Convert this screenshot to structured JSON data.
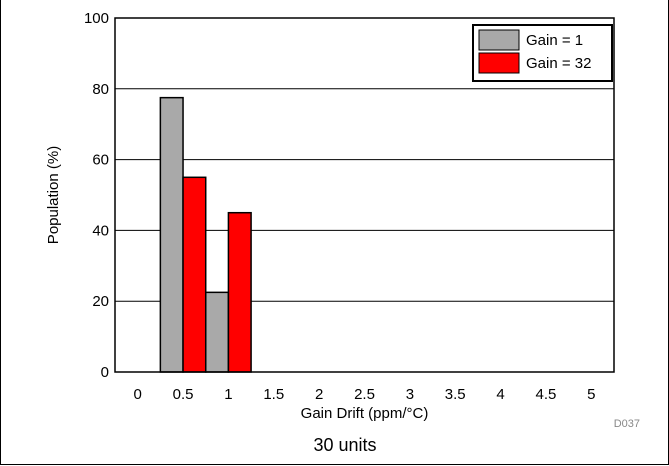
{
  "chart_data": {
    "type": "bar",
    "xlabel": "Gain Drift (ppm/°C)",
    "ylabel": "Population (%)",
    "x_ticks": [
      "0",
      "0.5",
      "1",
      "1.5",
      "2",
      "2.5",
      "3",
      "3.5",
      "4",
      "4.5",
      "5"
    ],
    "y_ticks": [
      "0",
      "20",
      "40",
      "60",
      "80",
      "100"
    ],
    "xlim": [
      -0.25,
      5.25
    ],
    "ylim": [
      0,
      100
    ],
    "grid": "horizontal",
    "legend_position": "top-right",
    "bin_width": 0.25,
    "series": [
      {
        "name": "Gain = 1",
        "color": "#a9a9a9",
        "bins": [
          {
            "start": 0.25,
            "value": 77.5
          },
          {
            "start": 0.75,
            "value": 22.5
          }
        ]
      },
      {
        "name": "Gain = 32",
        "color": "#ff0000",
        "bins": [
          {
            "start": 0.5,
            "value": 55
          },
          {
            "start": 1.0,
            "value": 45
          }
        ]
      }
    ],
    "figure_code": "D037",
    "caption": "30 units"
  }
}
